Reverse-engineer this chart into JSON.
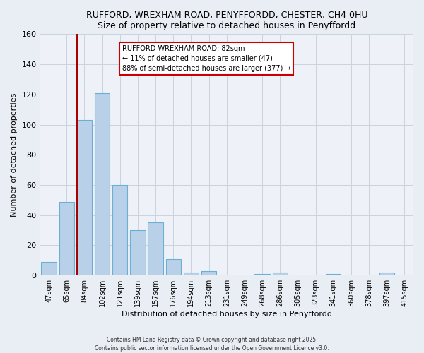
{
  "title": "RUFFORD, WREXHAM ROAD, PENYFFORDD, CHESTER, CH4 0HU",
  "subtitle": "Size of property relative to detached houses in Penyffordd",
  "xlabel": "Distribution of detached houses by size in Penyffordd",
  "ylabel": "Number of detached properties",
  "categories": [
    "47sqm",
    "65sqm",
    "84sqm",
    "102sqm",
    "121sqm",
    "139sqm",
    "157sqm",
    "176sqm",
    "194sqm",
    "213sqm",
    "231sqm",
    "249sqm",
    "268sqm",
    "286sqm",
    "305sqm",
    "323sqm",
    "341sqm",
    "360sqm",
    "378sqm",
    "397sqm",
    "415sqm"
  ],
  "values": [
    9,
    49,
    103,
    121,
    60,
    30,
    35,
    11,
    2,
    3,
    0,
    0,
    1,
    2,
    0,
    0,
    1,
    0,
    0,
    2,
    0
  ],
  "bar_color": "#b8d0e8",
  "bar_edge_color": "#6aafd4",
  "ylim": [
    0,
    160
  ],
  "yticks": [
    0,
    20,
    40,
    60,
    80,
    100,
    120,
    140,
    160
  ],
  "vline_color": "#aa0000",
  "annotation_title": "RUFFORD WREXHAM ROAD: 82sqm",
  "annotation_line1": "← 11% of detached houses are smaller (47)",
  "annotation_line2": "88% of semi-detached houses are larger (377) →",
  "footer1": "Contains HM Land Registry data © Crown copyright and database right 2025.",
  "footer2": "Contains public sector information licensed under the Open Government Licence v3.0.",
  "background_color": "#e8eef4",
  "plot_bg_color": "#eef2f8",
  "grid_color": "#c8d4e0"
}
